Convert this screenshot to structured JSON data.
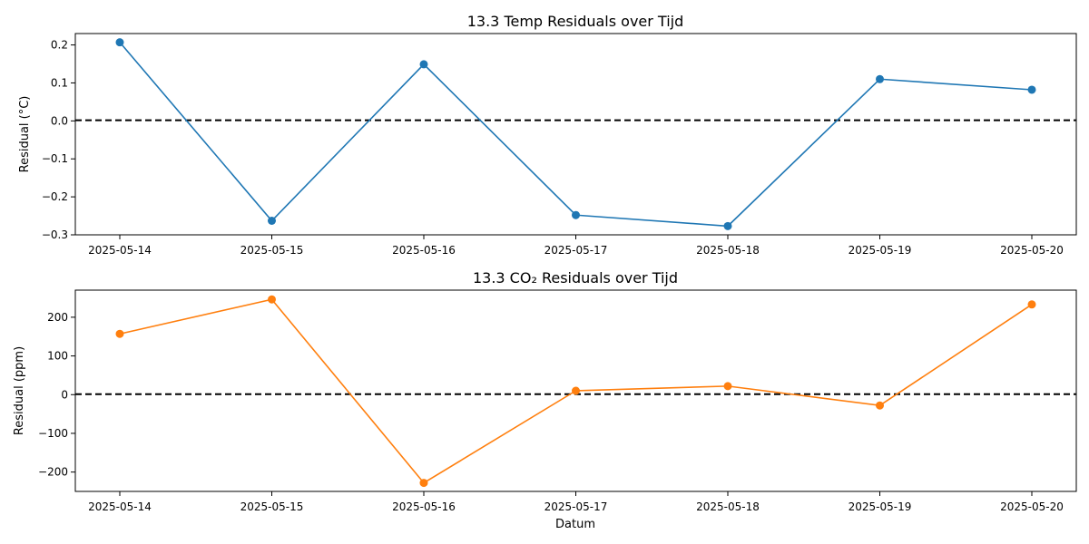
{
  "chart_data": [
    {
      "type": "line",
      "title": "13.3 Temp Residuals over Tijd",
      "xlabel": "",
      "ylabel": "Residual (°C)",
      "x": [
        "2025-05-14",
        "2025-05-15",
        "2025-05-16",
        "2025-05-17",
        "2025-05-18",
        "2025-05-19",
        "2025-05-20"
      ],
      "series": [
        {
          "values": [
            0.207,
            -0.263,
            0.149,
            -0.248,
            -0.277,
            0.11,
            0.082
          ],
          "color": "#1f77b4"
        }
      ],
      "ylim": [
        -0.3,
        0.23
      ],
      "yticks": [
        "0.2",
        "0.1",
        "0.0",
        "−0.1",
        "−0.2",
        "−0.3"
      ],
      "reference_line": {
        "y": 0,
        "style": "dashed",
        "color": "#000000"
      },
      "grid": false
    },
    {
      "type": "line",
      "title": "13.3 CO₂ Residuals over Tijd",
      "xlabel": "Datum",
      "ylabel": "Residual (ppm)",
      "x": [
        "2025-05-14",
        "2025-05-15",
        "2025-05-16",
        "2025-05-17",
        "2025-05-18",
        "2025-05-19",
        "2025-05-20"
      ],
      "series": [
        {
          "values": [
            157,
            246,
            -228,
            10,
            22,
            -28,
            233
          ],
          "color": "#ff7f0e"
        }
      ],
      "ylim": [
        -250,
        270
      ],
      "yticks": [
        "200",
        "100",
        "0",
        "−100",
        "−200"
      ],
      "reference_line": {
        "y": 0,
        "style": "dashed",
        "color": "#000000"
      },
      "grid": false
    }
  ]
}
